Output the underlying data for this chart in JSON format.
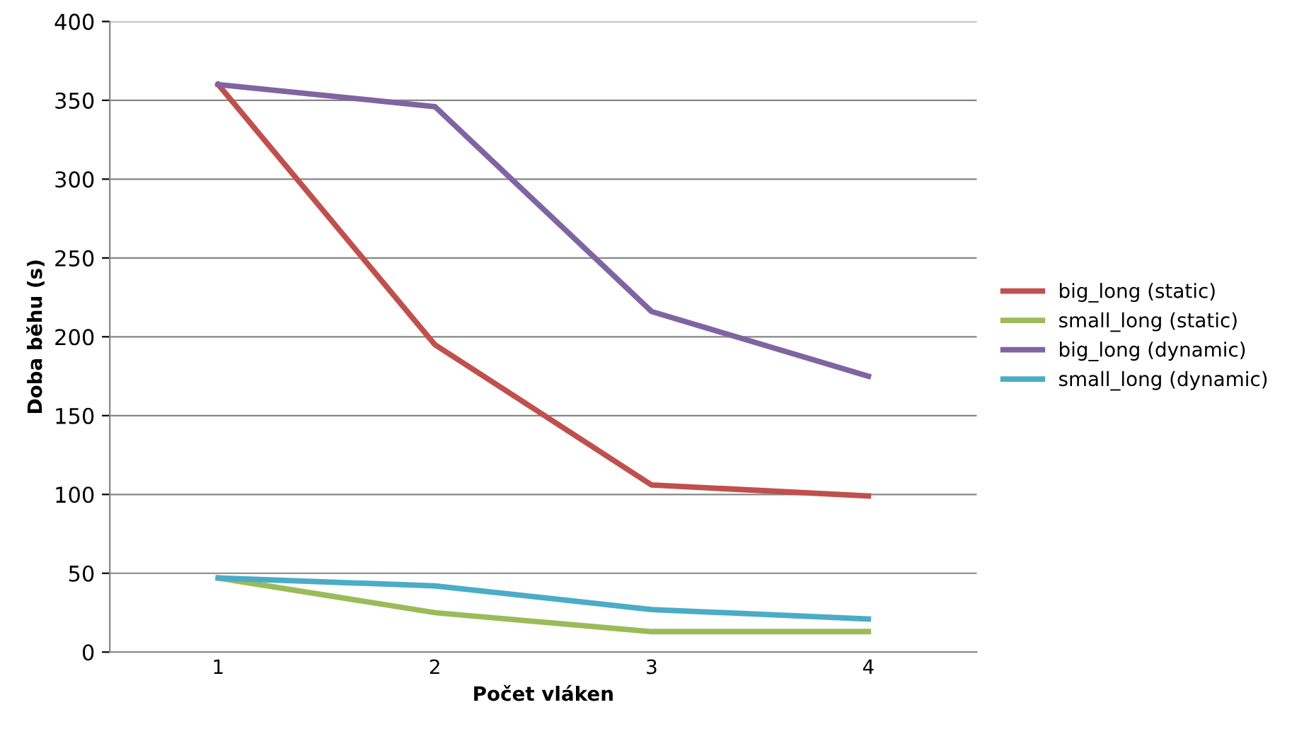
{
  "chart_data": {
    "type": "line",
    "xlabel": "Počet vláken",
    "ylabel": "Doba běhu (s)",
    "categories": [
      "1",
      "2",
      "3",
      "4"
    ],
    "series": [
      {
        "name": "big_long (static)",
        "color": "#c0504d",
        "values": [
          360,
          195,
          106,
          99
        ]
      },
      {
        "name": "small_long (static)",
        "color": "#9bbb59",
        "values": [
          47,
          25,
          13,
          13
        ]
      },
      {
        "name": "big_long (dynamic)",
        "color": "#8064a2",
        "values": [
          360,
          346,
          216,
          175
        ]
      },
      {
        "name": "small_long (dynamic)",
        "color": "#4bacc6",
        "values": [
          47,
          42,
          27,
          21
        ]
      }
    ],
    "ylim": [
      0,
      400
    ],
    "yticks": [
      0,
      50,
      100,
      150,
      200,
      250,
      300,
      350,
      400
    ],
    "grid": "y",
    "legend": "right",
    "marker": "none",
    "line_style": "solid"
  }
}
